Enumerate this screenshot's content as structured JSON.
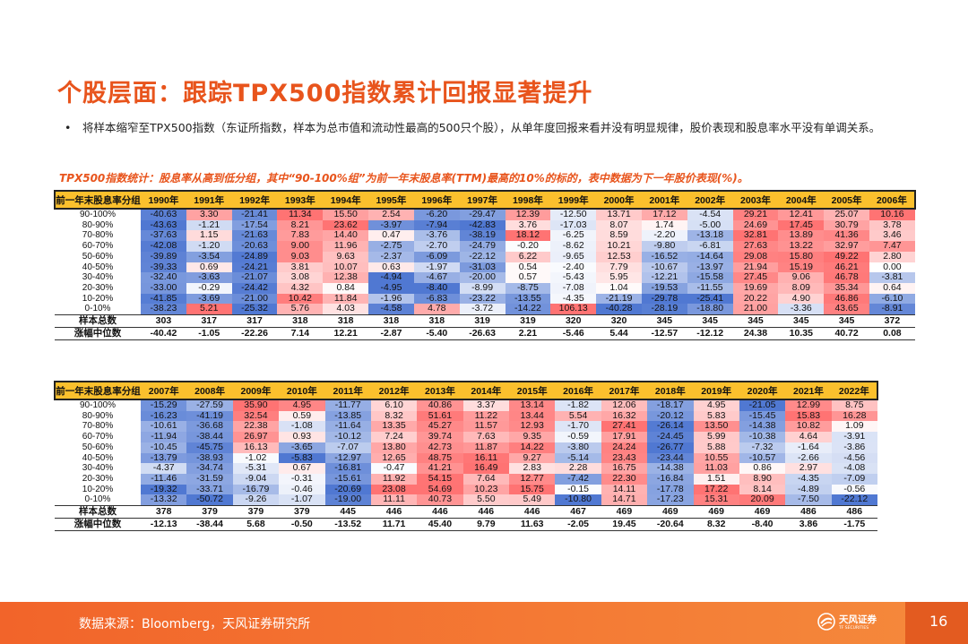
{
  "title": "个股层面：跟踪TPX500指数累计回报显著提升",
  "bullet": "将样本缩窄至TPX500指数（东证所指数，样本为总市值和流动性最高的500只个股），从单年度回报来看并没有明显规律，股价表现和股息率水平没有单调关系。",
  "caption": "TPX500指数统计：股息率从高到低分组，其中“90-100%组”为前一年末股息率(TTM)最高的10%的标的，表中数据为下一年股价表现(%)。",
  "table1": {
    "header": [
      "前一年末股息率分组",
      "1990年",
      "1991年",
      "1992年",
      "1993年",
      "1994年",
      "1995年",
      "1996年",
      "1997年",
      "1998年",
      "1999年",
      "2000年",
      "2001年",
      "2002年",
      "2003年",
      "2004年",
      "2005年",
      "2006年"
    ],
    "rows": [
      [
        "90-100%",
        "-40.63",
        "3.30",
        "-21.41",
        "11.34",
        "15.50",
        "2.54",
        "-6.20",
        "-29.47",
        "12.39",
        "-12.50",
        "13.71",
        "17.12",
        "-4.54",
        "29.21",
        "12.41",
        "25.07",
        "10.16"
      ],
      [
        "80-90%",
        "-43.63",
        "-1.21",
        "-17.54",
        "8.21",
        "23.62",
        "-3.97",
        "-7.94",
        "-42.83",
        "3.76",
        "-17.03",
        "8.07",
        "1.74",
        "-5.00",
        "24.69",
        "17.45",
        "30.79",
        "3.78"
      ],
      [
        "70-80%",
        "-37.63",
        "1.15",
        "-21.63",
        "7.83",
        "14.40",
        "0.47",
        "-3.76",
        "-38.19",
        "18.12",
        "-6.25",
        "8.59",
        "-2.20",
        "-13.18",
        "32.81",
        "13.89",
        "41.36",
        "3.46"
      ],
      [
        "60-70%",
        "-42.08",
        "-1.20",
        "-20.63",
        "9.00",
        "11.96",
        "-2.75",
        "-2.70",
        "-24.79",
        "-0.20",
        "-8.62",
        "10.21",
        "-9.80",
        "-6.81",
        "27.63",
        "13.22",
        "32.97",
        "7.47"
      ],
      [
        "50-60%",
        "-39.89",
        "-3.54",
        "-24.89",
        "9.03",
        "9.63",
        "-2.37",
        "-6.09",
        "-22.12",
        "6.22",
        "-9.65",
        "12.53",
        "-16.52",
        "-14.64",
        "29.08",
        "15.80",
        "49.22",
        "2.80"
      ],
      [
        "40-50%",
        "-39.33",
        "0.69",
        "-24.21",
        "3.81",
        "10.07",
        "0.63",
        "-1.97",
        "-31.03",
        "0.54",
        "-2.40",
        "7.79",
        "-10.67",
        "-13.97",
        "21.94",
        "15.19",
        "46.21",
        "0.00"
      ],
      [
        "30-40%",
        "-32.40",
        "-3.63",
        "-21.07",
        "3.08",
        "12.38",
        "-4.94",
        "-4.67",
        "-20.00",
        "0.57",
        "-5.43",
        "5.95",
        "-12.21",
        "-15.58",
        "27.45",
        "9.06",
        "46.78",
        "-3.81"
      ],
      [
        "20-30%",
        "-33.00",
        "-0.29",
        "-24.42",
        "4.32",
        "0.84",
        "-4.95",
        "-8.40",
        "-8.99",
        "-8.75",
        "-7.08",
        "1.04",
        "-19.53",
        "-11.55",
        "19.69",
        "8.09",
        "35.34",
        "0.64"
      ],
      [
        "10-20%",
        "-41.85",
        "-3.69",
        "-21.00",
        "10.42",
        "11.84",
        "-1.96",
        "-6.83",
        "-23.22",
        "-13.55",
        "-4.35",
        "-21.19",
        "-29.78",
        "-25.41",
        "20.22",
        "4.90",
        "46.86",
        "-6.10"
      ],
      [
        "0-10%",
        "-38.23",
        "5.21",
        "-25.32",
        "5.76",
        "4.03",
        "-4.58",
        "4.78",
        "-3.72",
        "-14.22",
        "106.13",
        "-40.28",
        "-28.19",
        "-18.80",
        "21.00",
        "-3.36",
        "43.65",
        "-8.91"
      ]
    ],
    "count": [
      "样本总数",
      "303",
      "317",
      "317",
      "318",
      "318",
      "318",
      "318",
      "319",
      "319",
      "320",
      "320",
      "345",
      "345",
      "345",
      "345",
      "345",
      "372"
    ],
    "median": [
      "涨幅中位数",
      "-40.42",
      "-1.05",
      "-22.26",
      "7.14",
      "12.21",
      "-2.87",
      "-5.40",
      "-26.63",
      "2.21",
      "-5.46",
      "5.44",
      "-12.57",
      "-12.12",
      "24.38",
      "10.35",
      "40.72",
      "0.08"
    ]
  },
  "table2": {
    "header": [
      "前一年末股息率分组",
      "2007年",
      "2008年",
      "2009年",
      "2010年",
      "2011年",
      "2012年",
      "2013年",
      "2014年",
      "2015年",
      "2016年",
      "2017年",
      "2018年",
      "2019年",
      "2020年",
      "2021年",
      "2022年"
    ],
    "rows": [
      [
        "90-100%",
        "-15.29",
        "-27.59",
        "35.90",
        "4.95",
        "-11.77",
        "6.10",
        "40.86",
        "3.37",
        "13.14",
        "-1.82",
        "12.06",
        "-18.17",
        "4.95",
        "-21.05",
        "12.99",
        "8.75"
      ],
      [
        "80-90%",
        "-16.23",
        "-41.19",
        "32.54",
        "0.59",
        "-13.85",
        "8.32",
        "51.61",
        "11.22",
        "13.44",
        "5.54",
        "16.32",
        "-20.12",
        "5.83",
        "-15.45",
        "15.83",
        "16.28"
      ],
      [
        "70-80%",
        "-10.61",
        "-36.68",
        "22.38",
        "-1.08",
        "-11.64",
        "13.35",
        "45.27",
        "11.57",
        "12.93",
        "-1.70",
        "27.41",
        "-26.14",
        "13.50",
        "-14.38",
        "10.82",
        "1.09"
      ],
      [
        "60-70%",
        "-11.94",
        "-38.44",
        "26.97",
        "0.93",
        "-10.12",
        "7.24",
        "39.74",
        "7.63",
        "9.35",
        "-0.59",
        "17.91",
        "-24.45",
        "5.99",
        "-10.38",
        "4.64",
        "-3.91"
      ],
      [
        "50-60%",
        "-10.45",
        "-45.75",
        "16.13",
        "-3.65",
        "-7.07",
        "13.80",
        "42.73",
        "11.87",
        "14.22",
        "-3.80",
        "24.24",
        "-26.77",
        "5.88",
        "-7.32",
        "-1.64",
        "-3.86"
      ],
      [
        "40-50%",
        "-13.79",
        "-38.93",
        "-1.02",
        "-5.83",
        "-12.97",
        "12.65",
        "48.75",
        "16.11",
        "9.27",
        "-5.14",
        "23.43",
        "-23.44",
        "10.55",
        "-10.57",
        "-2.66",
        "-4.56"
      ],
      [
        "30-40%",
        "-4.37",
        "-34.74",
        "-5.31",
        "0.67",
        "-16.81",
        "-0.47",
        "41.21",
        "16.49",
        "2.83",
        "2.28",
        "16.75",
        "-14.38",
        "11.03",
        "0.86",
        "2.97",
        "-4.08"
      ],
      [
        "20-30%",
        "-11.46",
        "-31.59",
        "-9.04",
        "-0.31",
        "-15.61",
        "11.92",
        "54.15",
        "7.64",
        "12.77",
        "-7.42",
        "22.30",
        "-16.84",
        "1.51",
        "8.90",
        "-4.35",
        "-7.09"
      ],
      [
        "10-20%",
        "-19.32",
        "-33.71",
        "-16.79",
        "-0.46",
        "-20.69",
        "23.08",
        "54.69",
        "10.23",
        "15.75",
        "-0.15",
        "14.11",
        "-17.78",
        "17.22",
        "8.14",
        "-4.89",
        "-0.56"
      ],
      [
        "0-10%",
        "-13.32",
        "-50.72",
        "-9.26",
        "-1.07",
        "-19.00",
        "11.11",
        "40.73",
        "5.50",
        "5.49",
        "-10.80",
        "14.71",
        "-17.23",
        "15.31",
        "20.09",
        "-7.50",
        "-22.12"
      ]
    ],
    "count": [
      "样本总数",
      "378",
      "379",
      "379",
      "379",
      "445",
      "446",
      "446",
      "446",
      "446",
      "467",
      "469",
      "469",
      "469",
      "469",
      "486",
      "486"
    ],
    "median": [
      "涨幅中位数",
      "-12.13",
      "-38.44",
      "5.68",
      "-0.50",
      "-13.52",
      "11.71",
      "45.40",
      "9.79",
      "11.63",
      "-2.05",
      "19.45",
      "-20.64",
      "8.32",
      "-8.40",
      "3.86",
      "-1.75"
    ]
  },
  "footer": {
    "source": "数据来源：Bloomberg，天风证券研究所",
    "logo_cn": "天风证券",
    "logo_en": "TF SECURITIES",
    "page": "16"
  },
  "colors": {
    "accent": "#e8541c",
    "header_bg": "#fbc02d",
    "pos": "#e04848",
    "neg": "#4a74c9"
  }
}
